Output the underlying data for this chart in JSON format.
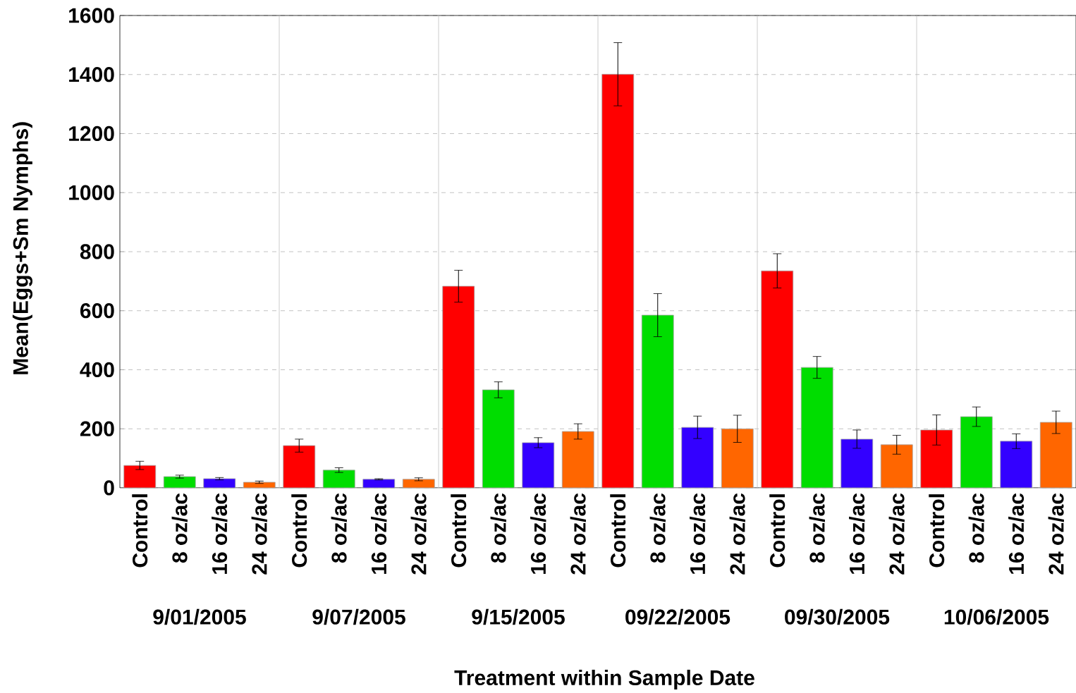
{
  "chart_data": {
    "type": "bar",
    "xlabel": "Treatment within Sample Date",
    "ylabel": "Mean(Eggs+Sm Nymphs)",
    "categories": [
      "Control",
      "8 oz/ac",
      "16 oz/ac",
      "24 oz/ac",
      "Control",
      "8 oz/ac",
      "16 oz/ac",
      "24 oz/ac",
      "Control",
      "8 oz/ac",
      "16 oz/ac",
      "24 oz/ac",
      "Control",
      "8 oz/ac",
      "16 oz/ac",
      "24 oz/ac",
      "Control",
      "8 oz/ac",
      "16 oz/ac",
      "24 oz/ac",
      "Control",
      "8 oz/ac",
      "16 oz/ac",
      "24 oz/ac"
    ],
    "values": [
      76,
      38,
      31,
      19,
      143,
      60,
      29,
      29,
      683,
      332,
      153,
      191,
      1401,
      585,
      205,
      200,
      735,
      408,
      165,
      146,
      196,
      241,
      158,
      222
    ],
    "errors": [
      14,
      5,
      4,
      4,
      22,
      8,
      2,
      5,
      54,
      27,
      17,
      26,
      107,
      73,
      38,
      46,
      58,
      37,
      31,
      32,
      51,
      33,
      25,
      38
    ],
    "colors": [
      "#ff0000",
      "#00dd00",
      "#3300ff",
      "#ff6600",
      "#ff0000",
      "#00dd00",
      "#3300ff",
      "#ff6600",
      "#ff0000",
      "#00dd00",
      "#3300ff",
      "#ff6600",
      "#ff0000",
      "#00dd00",
      "#3300ff",
      "#ff6600",
      "#ff0000",
      "#00dd00",
      "#3300ff",
      "#ff6600",
      "#ff0000",
      "#00dd00",
      "#3300ff",
      "#ff6600"
    ],
    "annotations": [
      "9/01/2005",
      "9/07/2005",
      "9/15/2005",
      "09/22/2005",
      "09/30/2005",
      "10/06/2005"
    ],
    "ylim": [
      0,
      1600
    ],
    "yticks": [
      0,
      200,
      400,
      600,
      800,
      1000,
      1200,
      1400,
      1600
    ],
    "grid": "y"
  }
}
